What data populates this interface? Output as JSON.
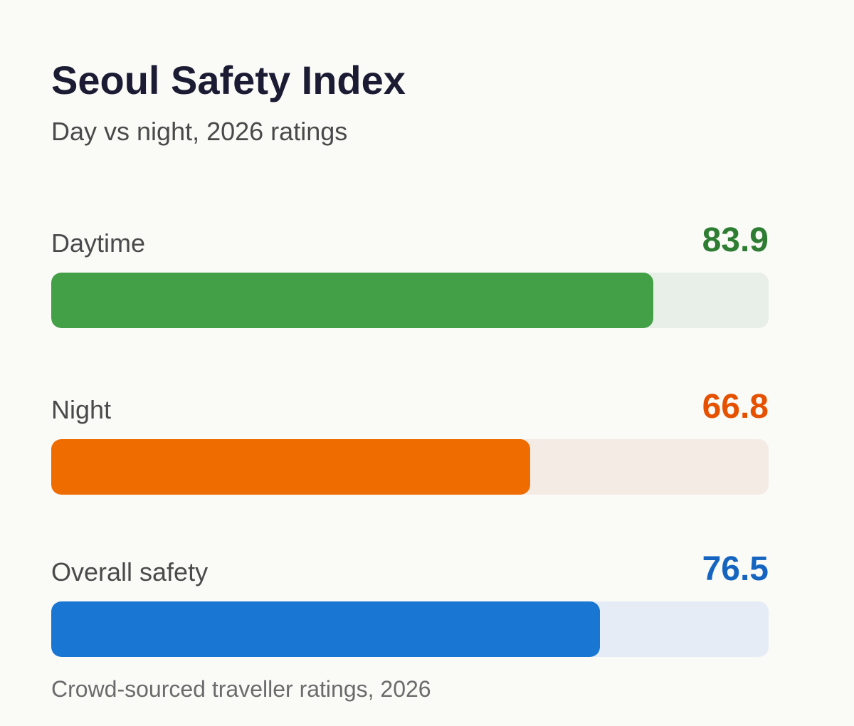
{
  "header": {
    "title": "Seoul Safety Index",
    "subtitle": "Day vs night, 2026 ratings"
  },
  "footer": {
    "note": "Crowd-sourced traveller ratings, 2026"
  },
  "chart_data": {
    "type": "bar",
    "orientation": "horizontal",
    "title": "Seoul Safety Index",
    "subtitle": "Day vs night, 2026 ratings",
    "xlim": [
      0,
      100
    ],
    "grid": false,
    "legend": "none",
    "categories": [
      "Daytime",
      "Night",
      "Overall safety"
    ],
    "values": [
      83.9,
      66.8,
      76.5
    ],
    "value_labels": [
      "83.9",
      "66.8",
      "76.5"
    ],
    "colors": {
      "Daytime": {
        "value_text": "#2e7d32",
        "fill": "#43a047",
        "track": "#e8eee8"
      },
      "Night": {
        "value_text": "#e65100",
        "fill": "#ef6c00",
        "track": "#f4ebe5"
      },
      "Overall safety": {
        "value_text": "#1565c0",
        "fill": "#1976d2",
        "track": "#e6ecf6"
      }
    }
  }
}
